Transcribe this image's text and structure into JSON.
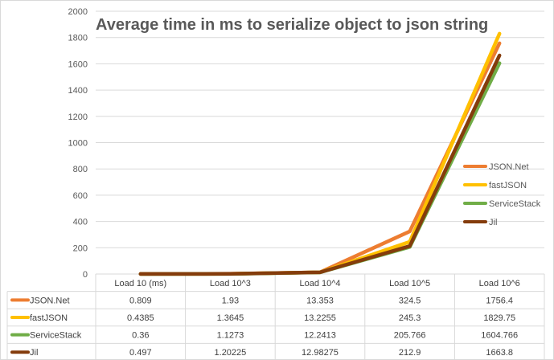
{
  "chart_data": {
    "type": "line",
    "title": "Average time in ms to serialize object to json string",
    "categories": [
      "Load 10 (ms)",
      "Load 10^3",
      "Load 10^4",
      "Load 10^5",
      "Load 10^6"
    ],
    "series": [
      {
        "name": "JSON.Net",
        "color": "#ed7d31",
        "values": [
          0.809,
          1.93,
          13.353,
          324.5,
          1756.4
        ],
        "labels": [
          "0.809",
          "1.93",
          "13.353",
          "324.5",
          "1756.4"
        ]
      },
      {
        "name": "fastJSON",
        "color": "#ffc000",
        "values": [
          0.4385,
          1.3645,
          13.2255,
          245.3,
          1829.75
        ],
        "labels": [
          "0.4385",
          "1.3645",
          "13.2255",
          "245.3",
          "1829.75"
        ]
      },
      {
        "name": "ServiceStack",
        "color": "#70ad47",
        "values": [
          0.36,
          1.1273,
          12.2413,
          205.766,
          1604.766
        ],
        "labels": [
          "0.36",
          "1.1273",
          "12.2413",
          "205.766",
          "1604.766"
        ]
      },
      {
        "name": "Jil",
        "color": "#843c0c",
        "values": [
          0.497,
          1.20225,
          12.98275,
          212.9,
          1663.8
        ],
        "labels": [
          "0.497",
          "1.20225",
          "12.98275",
          "212.9",
          "1663.8"
        ]
      }
    ],
    "yticks": [
      0,
      200,
      400,
      600,
      800,
      1000,
      1200,
      1400,
      1600,
      1800,
      2000
    ],
    "ylim": [
      0,
      2000
    ],
    "grid": true,
    "legend": "right",
    "data_table": true
  }
}
